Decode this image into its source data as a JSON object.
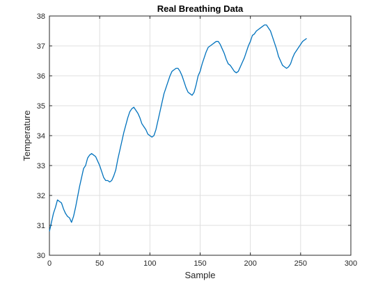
{
  "chart_data": {
    "type": "line",
    "title": "Real Breathing Data",
    "xlabel": "Sample",
    "ylabel": "Temperature",
    "xlim": [
      0,
      300
    ],
    "ylim": [
      30,
      38
    ],
    "xticks": [
      "0",
      "50",
      "100",
      "150",
      "200",
      "250",
      "300"
    ],
    "yticks": [
      "30",
      "31",
      "32",
      "33",
      "34",
      "35",
      "36",
      "37",
      "38"
    ],
    "grid": true,
    "line_color": "#0072BD",
    "series": [
      {
        "x": [
          0,
          2,
          4,
          6,
          8,
          10,
          12,
          14,
          16,
          18,
          20,
          22,
          24,
          26,
          28,
          30,
          32,
          34,
          36,
          38,
          40,
          42,
          44,
          46,
          48,
          50,
          52,
          54,
          56,
          58,
          60,
          62,
          64,
          66,
          68,
          70,
          72,
          74,
          76,
          78,
          80,
          82,
          84,
          86,
          88,
          90,
          92,
          94,
          96,
          98,
          100,
          102,
          104,
          106,
          108,
          110,
          112,
          114,
          116,
          118,
          120,
          122,
          124,
          126,
          128,
          130,
          132,
          134,
          136,
          138,
          140,
          142,
          144,
          146,
          148,
          150,
          152,
          154,
          156,
          158,
          160,
          162,
          164,
          166,
          168,
          170,
          172,
          174,
          176,
          178,
          180,
          182,
          184,
          186,
          188,
          190,
          192,
          194,
          196,
          198,
          200,
          202,
          204,
          206,
          208,
          210,
          212,
          214,
          216,
          218,
          220,
          222,
          224,
          226,
          228,
          230,
          232,
          234,
          236,
          238,
          240,
          242,
          244,
          246,
          248,
          250,
          252,
          254,
          256
        ],
        "y": [
          30.8,
          31.1,
          31.4,
          31.6,
          31.85,
          31.8,
          31.75,
          31.55,
          31.4,
          31.3,
          31.25,
          31.1,
          31.3,
          31.6,
          31.95,
          32.3,
          32.6,
          32.9,
          33.0,
          33.25,
          33.35,
          33.4,
          33.35,
          33.3,
          33.15,
          33.0,
          32.8,
          32.6,
          32.5,
          32.5,
          32.45,
          32.5,
          32.65,
          32.85,
          33.2,
          33.5,
          33.8,
          34.1,
          34.35,
          34.6,
          34.8,
          34.9,
          34.95,
          34.85,
          34.75,
          34.6,
          34.4,
          34.3,
          34.2,
          34.05,
          34.0,
          33.95,
          34.0,
          34.2,
          34.5,
          34.8,
          35.1,
          35.4,
          35.6,
          35.8,
          36.0,
          36.15,
          36.2,
          36.25,
          36.25,
          36.15,
          36.0,
          35.8,
          35.6,
          35.45,
          35.4,
          35.35,
          35.45,
          35.7,
          36.0,
          36.15,
          36.4,
          36.6,
          36.8,
          36.95,
          37.0,
          37.05,
          37.1,
          37.15,
          37.15,
          37.05,
          36.9,
          36.75,
          36.55,
          36.4,
          36.35,
          36.25,
          36.15,
          36.1,
          36.15,
          36.3,
          36.45,
          36.6,
          36.8,
          37.0,
          37.15,
          37.35,
          37.4,
          37.5,
          37.55,
          37.6,
          37.65,
          37.7,
          37.7,
          37.6,
          37.5,
          37.3,
          37.1,
          36.9,
          36.65,
          36.5,
          36.35,
          36.3,
          36.25,
          36.3,
          36.4,
          36.6,
          36.75,
          36.85,
          36.95,
          37.05,
          37.15,
          37.2,
          37.25
        ]
      }
    ]
  }
}
